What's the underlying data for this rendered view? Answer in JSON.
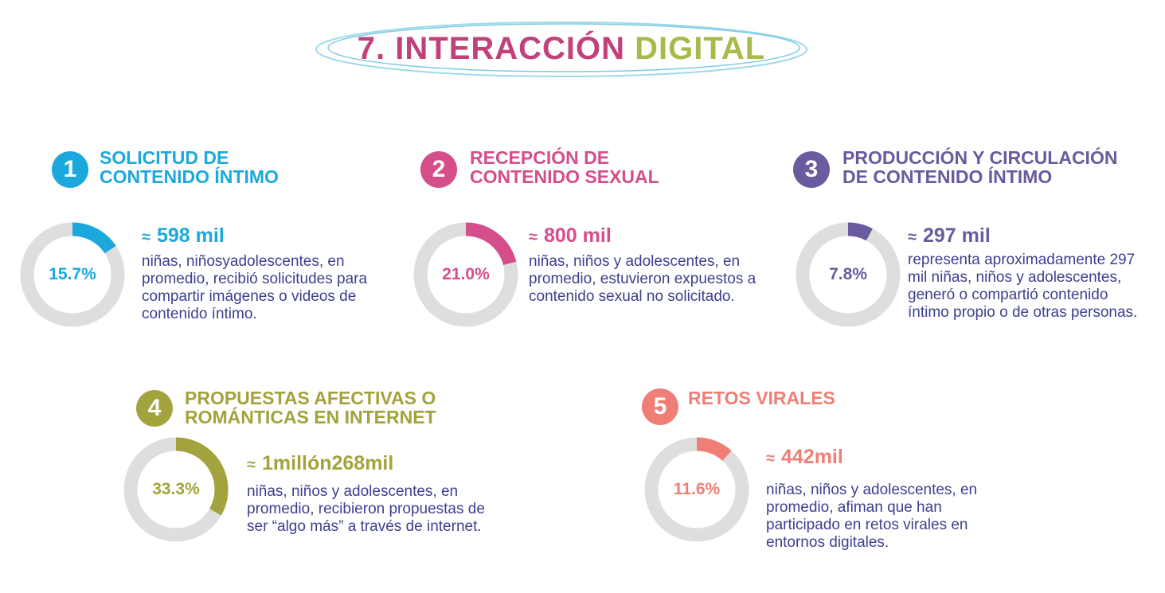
{
  "title": {
    "part1": "7. INTERACCIÓN",
    "part2": "DIGITAL"
  },
  "colors": {
    "cyan": "#1ba8dc",
    "pink": "#d64d8b",
    "purple": "#6a5a9e",
    "olive": "#a3a33d",
    "salmon": "#ef7e76",
    "track": "#dedede",
    "text": "#3d3f8f"
  },
  "sections": [
    {
      "number": "1",
      "heading": "SOLICITUD DE\nCONTENIDO ÍNTIMO",
      "stat": "598 mil",
      "approx": "≈",
      "description": "niñas, niñosyadolescentes, en promedio, recibió solicitudes para compartir imágenes o videos de contenido íntimo."
    },
    {
      "number": "2",
      "heading": "RECEPCIÓN DE\nCONTENIDO SEXUAL",
      "stat": "800 mil",
      "approx": "≈",
      "description": "niñas, niños y adolescentes, en promedio, estuvieron expuestos a contenido sexual no solicitado."
    },
    {
      "number": "3",
      "heading": "PRODUCCIÓN Y CIRCULACIÓN\nDE CONTENIDO ÍNTIMO",
      "stat": "297 mil",
      "approx": "≈",
      "description": "representa aproximadamente 297 mil niñas, niños y adolescentes, generó o compartió contenido íntimo propio o de otras personas."
    },
    {
      "number": "4",
      "heading": "PROPUESTAS AFECTIVAS O\nROMÁNTICAS EN INTERNET",
      "stat": "1millón268mil",
      "approx": "≈",
      "description": "niñas, niños y adolescentes, en promedio, recibieron propuestas de ser “algo más” a través de internet."
    },
    {
      "number": "5",
      "heading": "RETOS VIRALES",
      "stat": "442mil",
      "approx": "≈",
      "description": "niñas, niños y adolescentes, en promedio, afiman que han participado en retos virales en entornos digitales."
    }
  ],
  "chart_data": [
    {
      "type": "pie",
      "variant": "donut",
      "labels": [
        "15.7%"
      ],
      "values": [
        15.7
      ],
      "color": "#1ba8dc"
    },
    {
      "type": "pie",
      "variant": "donut",
      "labels": [
        "21.0%"
      ],
      "values": [
        21.0
      ],
      "color": "#d64d8b"
    },
    {
      "type": "pie",
      "variant": "donut",
      "labels": [
        "7.8%"
      ],
      "values": [
        7.8
      ],
      "color": "#6a5a9e"
    },
    {
      "type": "pie",
      "variant": "donut",
      "labels": [
        "33.3%"
      ],
      "values": [
        33.3
      ],
      "color": "#a3a33d"
    },
    {
      "type": "pie",
      "variant": "donut",
      "labels": [
        "11.6%"
      ],
      "values": [
        11.6
      ],
      "color": "#ef7e76"
    }
  ]
}
